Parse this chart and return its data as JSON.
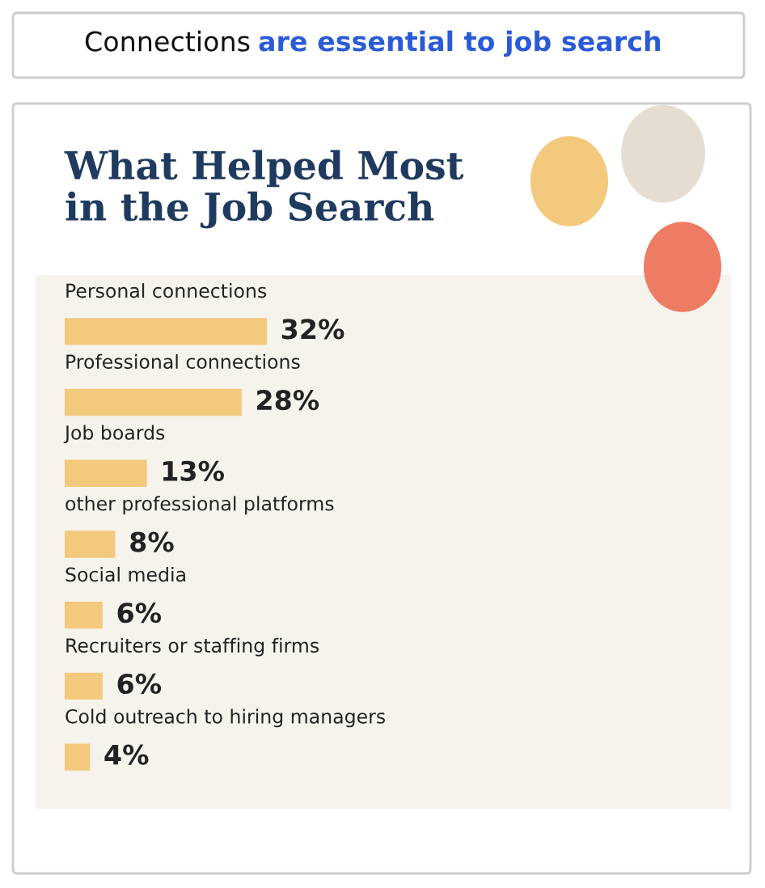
{
  "chart_data": {
    "type": "bar",
    "orientation": "horizontal",
    "title": "What Helped Most\nin the Job Search",
    "annotations": [
      "Connections",
      "are essential to job search"
    ],
    "categories": [
      "Personal connections",
      "Professional connections",
      "Job boards",
      "other professional platforms",
      "Social media",
      "Recruiters or staffing firms",
      "Cold outreach to hiring managers"
    ],
    "values": [
      32,
      28,
      13,
      8,
      6,
      6,
      4
    ],
    "value_labels": [
      "32%",
      "28%",
      "13%",
      "8%",
      "6%",
      "6%",
      "4%"
    ],
    "color": "#f2c97d"
  }
}
